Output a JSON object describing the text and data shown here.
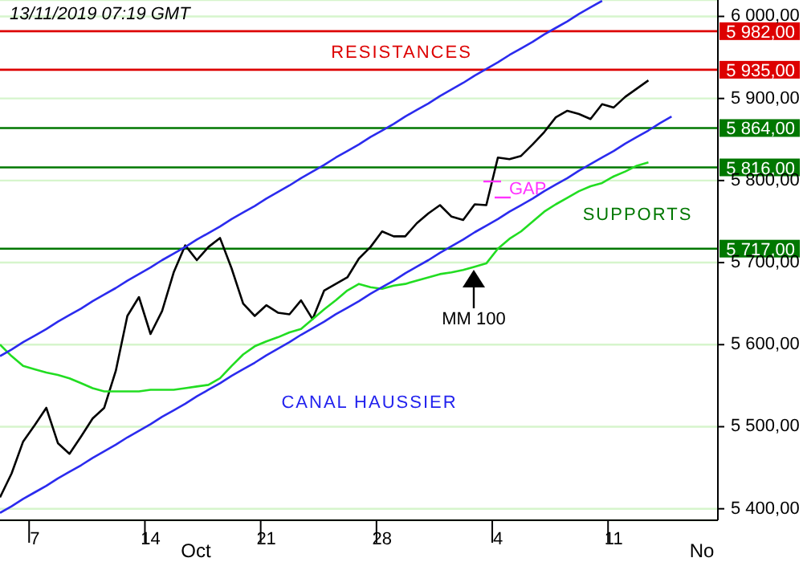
{
  "chart_data": {
    "type": "line",
    "title": "13/11/2019 07:19 GMT",
    "categories": [
      null,
      null,
      null,
      "7",
      null,
      null,
      null,
      null,
      null,
      null,
      null,
      null,
      null,
      "14",
      null,
      null,
      null,
      null,
      null,
      null,
      null,
      null,
      null,
      "21",
      null,
      null,
      null,
      null,
      null,
      null,
      null,
      null,
      null,
      "28",
      null,
      null,
      null,
      null,
      null,
      null,
      null,
      null,
      null,
      "4",
      null,
      null,
      null,
      null,
      null,
      null,
      null,
      null,
      null,
      "11",
      null,
      null,
      null,
      null,
      null,
      null,
      null,
      null,
      null
    ],
    "ylim": [
      5386,
      6020
    ],
    "yticks": [
      {
        "value": 5400,
        "label": "5 400,00"
      },
      {
        "value": 5500,
        "label": "5 500,00"
      },
      {
        "value": 5600,
        "label": "5 600,00"
      },
      {
        "value": 5700,
        "label": "5 700,00"
      },
      {
        "value": 5800,
        "label": "5 800,00"
      },
      {
        "value": 5900,
        "label": "5 900,00"
      },
      {
        "value": 6000,
        "label": "6 000,00"
      }
    ],
    "grid": "y",
    "series": [
      {
        "color": "#000000",
        "values": [
          5414,
          5443,
          5482,
          5502,
          5523,
          5480,
          5467,
          5488,
          5510,
          5523,
          5568,
          5635,
          5658,
          5613,
          5641,
          5688,
          5721,
          5703,
          5719,
          5730,
          5693,
          5650,
          5635,
          5648,
          5639,
          5637,
          5654,
          5631,
          5666,
          5674,
          5682,
          5705,
          5719,
          5738,
          5732,
          5732,
          5748,
          5760,
          5770,
          5756,
          5752,
          5771,
          5770,
          5828,
          5826,
          5830,
          5844,
          5859,
          5877,
          5885,
          5881,
          5875,
          5893,
          5889,
          5902,
          5912,
          5922,
          null,
          null,
          null,
          null,
          null,
          null
        ]
      },
      {
        "color": "#22dd22",
        "values": [
          5600,
          5586,
          5574,
          5570,
          5566,
          5563,
          5559,
          5553,
          5547,
          5543,
          5543,
          5543,
          5543,
          5545,
          5545,
          5545,
          5547,
          5549,
          5551,
          5559,
          5574,
          5588,
          5598,
          5604,
          5609,
          5615,
          5619,
          5631,
          5643,
          5654,
          5666,
          5674,
          5670,
          5668,
          5672,
          5674,
          5678,
          5682,
          5686,
          5688,
          5691,
          5695,
          5699,
          5717,
          5729,
          5738,
          5750,
          5762,
          5771,
          5779,
          5787,
          5793,
          5797,
          5805,
          5811,
          5818,
          5822,
          null,
          null,
          null,
          null,
          null,
          null
        ]
      },
      {
        "color": "#2b2bee",
        "values": [
          5395,
          5403,
          5412,
          5420,
          5428,
          5437,
          5445,
          5453,
          5462,
          5470,
          5478,
          5487,
          5495,
          5503,
          5512,
          5520,
          5528,
          5537,
          5545,
          5553,
          5562,
          5570,
          5578,
          5587,
          5595,
          5603,
          5612,
          5620,
          5628,
          5637,
          5645,
          5653,
          5662,
          5670,
          5678,
          5687,
          5695,
          5703,
          5712,
          5720,
          5728,
          5737,
          5745,
          5753,
          5762,
          5770,
          5778,
          5787,
          5795,
          5803,
          5812,
          5820,
          5828,
          5836,
          5845,
          5853,
          5861,
          5870,
          5878,
          null,
          null,
          null,
          null
        ]
      },
      {
        "color": "#2b2bee",
        "values": [
          5586,
          5594,
          5603,
          5611,
          5619,
          5628,
          5636,
          5644,
          5653,
          5661,
          5669,
          5678,
          5686,
          5694,
          5703,
          5711,
          5719,
          5728,
          5736,
          5744,
          5753,
          5761,
          5769,
          5778,
          5786,
          5794,
          5803,
          5811,
          5819,
          5828,
          5836,
          5844,
          5853,
          5861,
          5869,
          5878,
          5886,
          5894,
          5903,
          5911,
          5919,
          5928,
          5936,
          5944,
          5953,
          5961,
          5969,
          5978,
          5986,
          5994,
          6003,
          6011,
          6019,
          null,
          null,
          null,
          null,
          null,
          null,
          null,
          null,
          null,
          null
        ]
      }
    ],
    "ref_lines": [
      {
        "axis": "y",
        "value": 5982,
        "label": "5 982,00",
        "color": "#dd0000"
      },
      {
        "axis": "y",
        "value": 5935,
        "label": "5 935,00",
        "color": "#dd0000"
      },
      {
        "axis": "y",
        "value": 5864,
        "label": "5 864,00",
        "color": "#007700"
      },
      {
        "axis": "y",
        "value": 5816,
        "label": "5 816,00",
        "color": "#007700"
      },
      {
        "axis": "y",
        "value": 5717,
        "label": "5 717,00",
        "color": "#007700"
      }
    ],
    "annotations": [
      "RESISTANCES",
      "SUPPORTS",
      "CANAL HAUSSIER",
      "GAP",
      "MM 100",
      "Oct",
      "No"
    ]
  }
}
